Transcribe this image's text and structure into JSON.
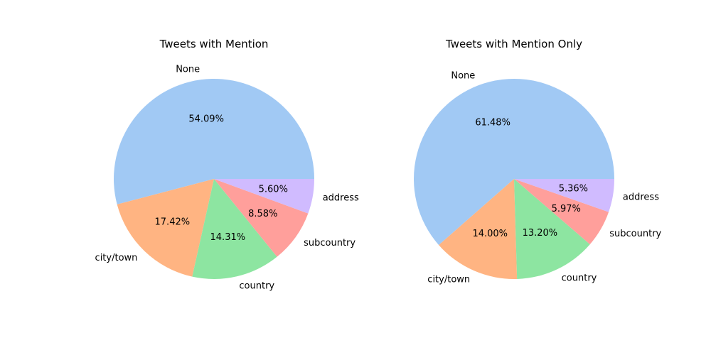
{
  "chart_data": [
    {
      "type": "pie",
      "title": "Tweets with Mention",
      "start_angle_deg": 0,
      "direction": "counterclockwise",
      "slices": [
        {
          "label": "None",
          "value": 54.09,
          "pct_text": "54.09%",
          "color": "#a1c9f4"
        },
        {
          "label": "city/town",
          "value": 17.42,
          "pct_text": "17.42%",
          "color": "#ffb482"
        },
        {
          "label": "country",
          "value": 14.31,
          "pct_text": "14.31%",
          "color": "#8de5a1"
        },
        {
          "label": "subcountry",
          "value": 8.58,
          "pct_text": "8.58%",
          "color": "#ff9f9b"
        },
        {
          "label": "address",
          "value": 5.6,
          "pct_text": "5.60%",
          "color": "#d0bbff"
        }
      ]
    },
    {
      "type": "pie",
      "title": "Tweets with Mention Only",
      "start_angle_deg": 0,
      "direction": "counterclockwise",
      "slices": [
        {
          "label": "None",
          "value": 61.48,
          "pct_text": "61.48%",
          "color": "#a1c9f4"
        },
        {
          "label": "city/town",
          "value": 14.0,
          "pct_text": "14.00%",
          "color": "#ffb482"
        },
        {
          "label": "country",
          "value": 13.2,
          "pct_text": "13.20%",
          "color": "#8de5a1"
        },
        {
          "label": "subcountry",
          "value": 5.97,
          "pct_text": "5.97%",
          "color": "#ff9f9b"
        },
        {
          "label": "address",
          "value": 5.36,
          "pct_text": "5.36%",
          "color": "#d0bbff"
        }
      ]
    }
  ]
}
